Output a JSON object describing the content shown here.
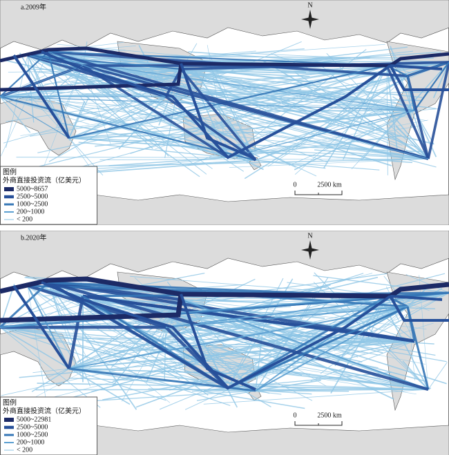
{
  "panels": [
    {
      "title": "a.2009年",
      "north": "N",
      "legend": {
        "title": "图例",
        "subtitle": "外商直接投资流（亿美元）",
        "items": [
          "5000~8657",
          "2500~5000",
          "1000~2500",
          "200~1000",
          "< 200"
        ]
      },
      "scale": {
        "zero": "0",
        "distance": "2500 km"
      }
    },
    {
      "title": "b.2020年",
      "north": "N",
      "legend": {
        "title": "图例",
        "subtitle": "外商直接投资流（亿美元）",
        "items": [
          "5000~22981",
          "2500~5000",
          "1000~2500",
          "200~1000",
          "< 200"
        ]
      },
      "scale": {
        "zero": "0",
        "distance": "2500 km"
      }
    }
  ]
}
